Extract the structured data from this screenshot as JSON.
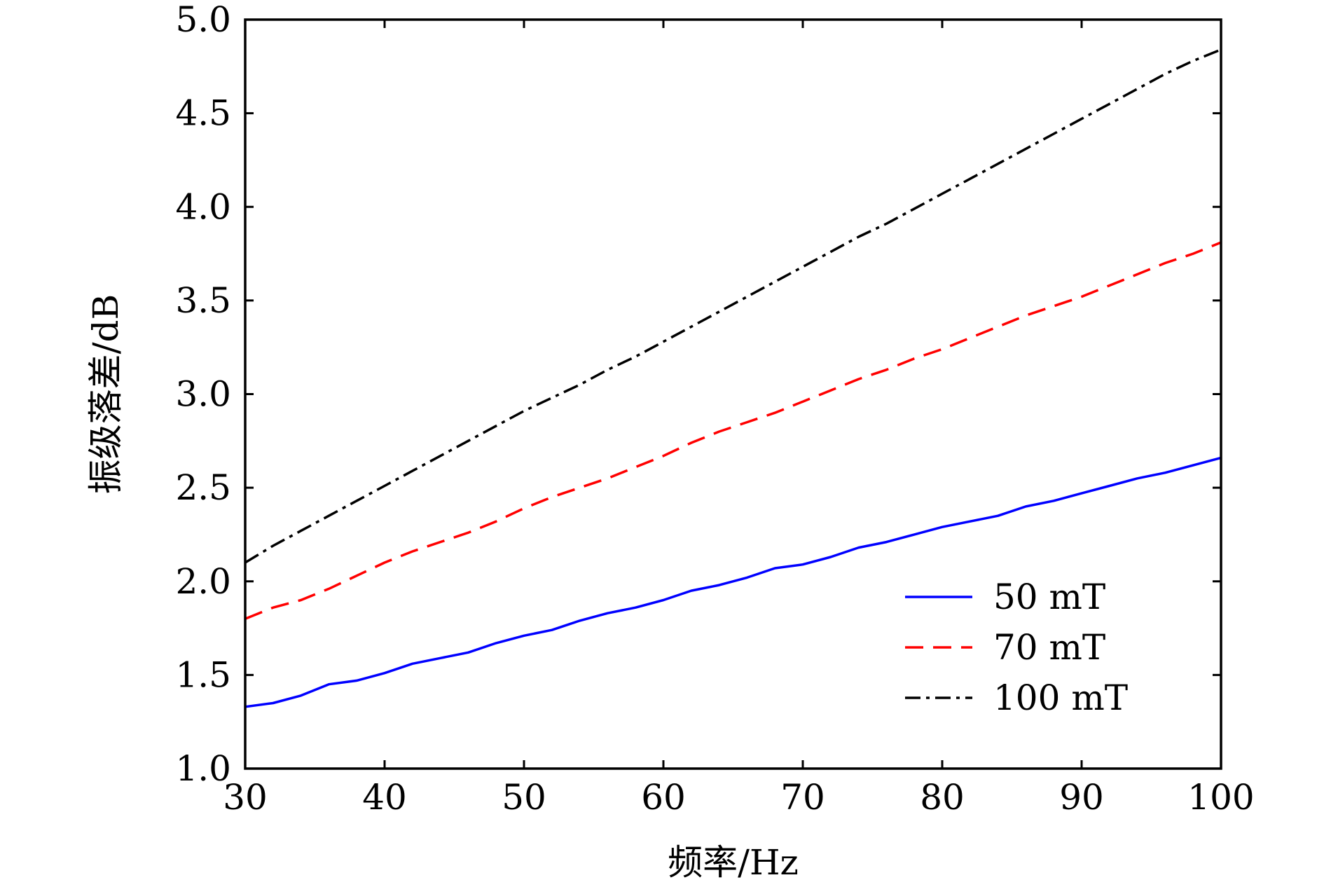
{
  "chart_data": {
    "type": "line",
    "title": "",
    "xlabel": "频率/Hz",
    "ylabel": "振级落差/dB",
    "xlim": [
      30,
      100
    ],
    "ylim": [
      1.0,
      5.0
    ],
    "xticks": [
      30,
      40,
      50,
      60,
      70,
      80,
      90,
      100
    ],
    "yticks": [
      1.0,
      1.5,
      2.0,
      2.5,
      3.0,
      3.5,
      4.0,
      4.5,
      5.0
    ],
    "xtick_labels": [
      "30",
      "40",
      "50",
      "60",
      "70",
      "80",
      "90",
      "100"
    ],
    "ytick_labels": [
      "1.0",
      "1.5",
      "2.0",
      "2.5",
      "3.0",
      "3.5",
      "4.0",
      "4.5",
      "5.0"
    ],
    "grid": false,
    "legend_position": "lower-right",
    "x": [
      30,
      32,
      34,
      36,
      38,
      40,
      42,
      44,
      46,
      48,
      50,
      52,
      54,
      56,
      58,
      60,
      62,
      64,
      66,
      68,
      70,
      72,
      74,
      76,
      78,
      80,
      82,
      84,
      86,
      88,
      90,
      92,
      94,
      96,
      98,
      100
    ],
    "series": [
      {
        "name": "50 mT",
        "color": "#0000ff",
        "style": "solid",
        "values": [
          1.33,
          1.35,
          1.39,
          1.45,
          1.47,
          1.51,
          1.56,
          1.59,
          1.62,
          1.67,
          1.71,
          1.74,
          1.79,
          1.83,
          1.86,
          1.9,
          1.95,
          1.98,
          2.02,
          2.07,
          2.09,
          2.13,
          2.18,
          2.21,
          2.25,
          2.29,
          2.32,
          2.35,
          2.4,
          2.43,
          2.47,
          2.51,
          2.55,
          2.58,
          2.62,
          2.66
        ]
      },
      {
        "name": "70 mT",
        "color": "#ff0000",
        "style": "dashed",
        "values": [
          1.8,
          1.86,
          1.9,
          1.96,
          2.03,
          2.1,
          2.16,
          2.21,
          2.26,
          2.32,
          2.39,
          2.45,
          2.5,
          2.55,
          2.61,
          2.67,
          2.74,
          2.8,
          2.85,
          2.9,
          2.96,
          3.02,
          3.08,
          3.13,
          3.19,
          3.24,
          3.3,
          3.36,
          3.42,
          3.47,
          3.52,
          3.58,
          3.64,
          3.7,
          3.75,
          3.81
        ]
      },
      {
        "name": "100 mT",
        "color": "#000000",
        "style": "dashdot",
        "values": [
          2.1,
          2.19,
          2.27,
          2.35,
          2.43,
          2.51,
          2.59,
          2.67,
          2.75,
          2.83,
          2.91,
          2.98,
          3.05,
          3.13,
          3.2,
          3.28,
          3.36,
          3.44,
          3.52,
          3.6,
          3.68,
          3.76,
          3.84,
          3.91,
          3.99,
          4.07,
          4.15,
          4.23,
          4.31,
          4.39,
          4.47,
          4.55,
          4.63,
          4.71,
          4.78,
          4.84
        ]
      }
    ]
  }
}
